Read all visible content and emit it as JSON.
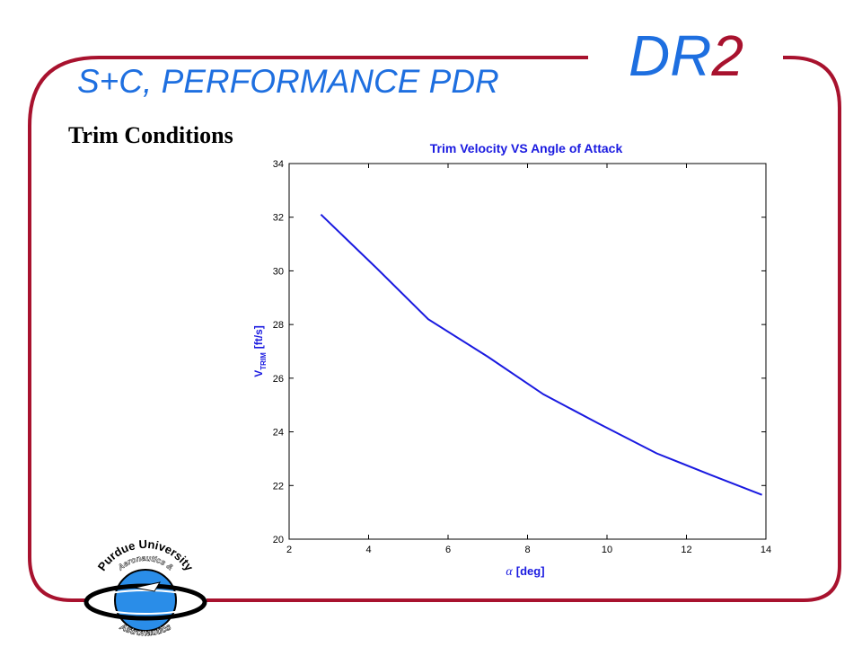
{
  "slide": {
    "title": "S+C, PERFORMANCE PDR",
    "brand_prefix": "DR",
    "brand_number": "2",
    "subtitle": "Trim Conditions",
    "logo_text_top": "Purdue University",
    "logo_text_middle": "Aeronautics &",
    "logo_text_bottom": "Astronautics",
    "colors": {
      "title": "#1e6fe0",
      "frame": "#a8122e",
      "plot_line": "#1a1ae0"
    }
  },
  "chart_data": {
    "type": "line",
    "title": "Trim Velocity VS Angle of Attack",
    "xlabel_symbol": "α",
    "xlabel_text": "[deg]",
    "ylabel_main": "V",
    "ylabel_sub": "TRIM",
    "ylabel_unit": "[ft/s]",
    "xlim": [
      2,
      14
    ],
    "ylim": [
      20,
      34
    ],
    "xticks": [
      "2",
      "4",
      "6",
      "8",
      "10",
      "12",
      "14"
    ],
    "yticks": [
      "20",
      "22",
      "24",
      "26",
      "28",
      "30",
      "32",
      "34"
    ],
    "grid": false,
    "series": [
      {
        "color": "#1a1ae0",
        "x": [
          2.8,
          4.2,
          5.5,
          7.0,
          8.4,
          9.8,
          11.25,
          12.6,
          13.9
        ],
        "y": [
          32.1,
          30.1,
          28.2,
          26.8,
          25.4,
          24.3,
          23.2,
          22.4,
          21.65
        ]
      }
    ]
  }
}
